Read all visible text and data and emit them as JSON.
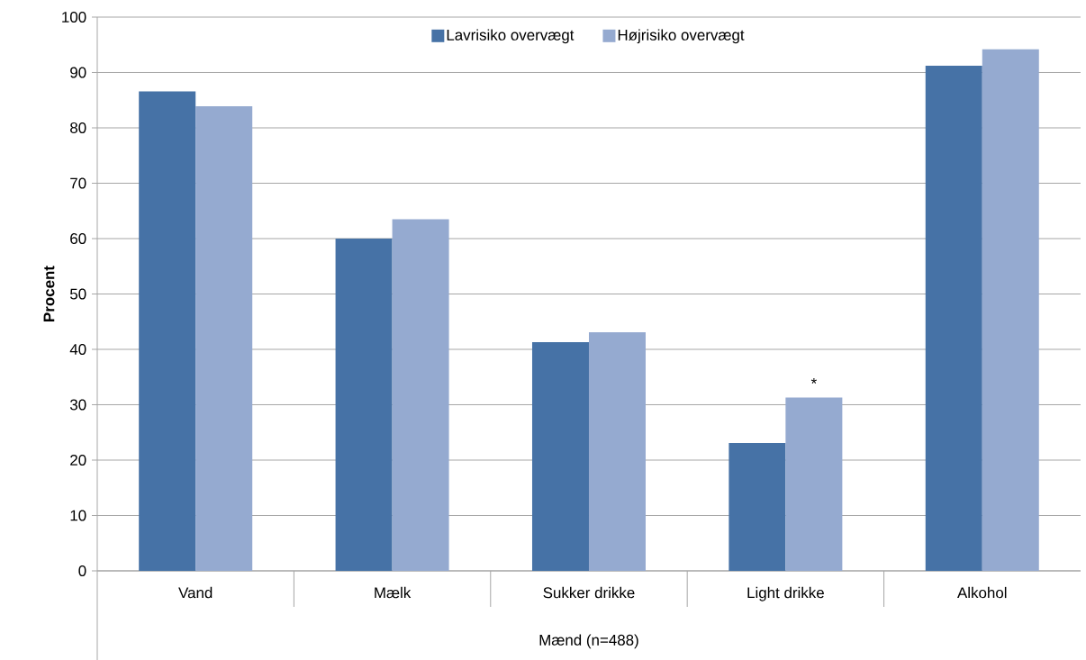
{
  "chart_data": {
    "type": "bar",
    "categories": [
      "Vand",
      "Mælk",
      "Sukker drikke",
      "Light drikke",
      "Alkohol"
    ],
    "series": [
      {
        "name": "Lavrisiko overvægt",
        "color": "#4672A6",
        "values": [
          86.6,
          60.0,
          41.3,
          23.1,
          91.2
        ]
      },
      {
        "name": "Højrisiko overvægt",
        "color": "#95AAD0",
        "values": [
          83.9,
          63.5,
          43.1,
          31.3,
          94.2
        ]
      }
    ],
    "xlabel": "Mænd (n=488)",
    "ylabel": "Procent",
    "ylim": [
      0,
      100
    ],
    "yticks": [
      0,
      10,
      20,
      30,
      40,
      50,
      60,
      70,
      80,
      90,
      100
    ],
    "grid": "y",
    "legend": "top",
    "annotations": [
      {
        "text": "*",
        "x": "Light drikke",
        "y": 31.3
      }
    ]
  }
}
